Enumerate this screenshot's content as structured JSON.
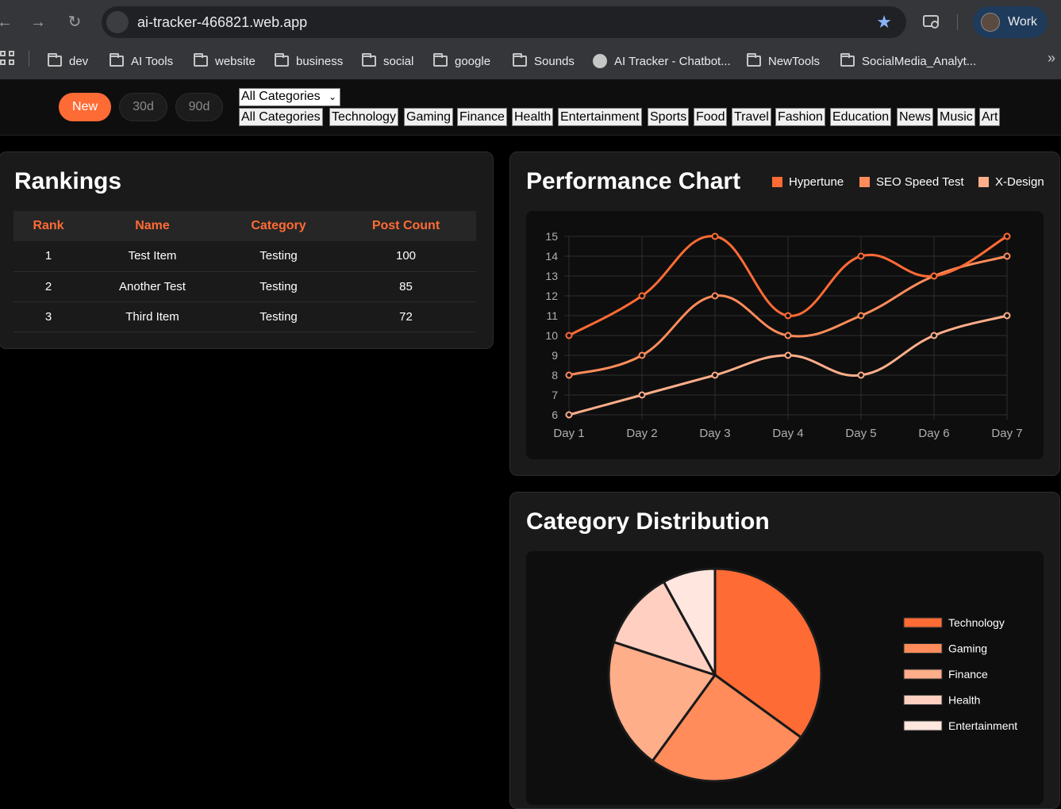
{
  "browser": {
    "url": "ai-tracker-466821.web.app",
    "profile_label": "Work",
    "bookmarks": [
      {
        "label": "dev",
        "icon": "folder-icon"
      },
      {
        "label": "AI Tools",
        "icon": "folder-icon"
      },
      {
        "label": "website",
        "icon": "folder-icon"
      },
      {
        "label": "business",
        "icon": "folder-icon"
      },
      {
        "label": "social",
        "icon": "folder-icon"
      },
      {
        "label": "google",
        "icon": "folder-icon"
      },
      {
        "label": "Sounds",
        "icon": "folder-icon"
      },
      {
        "label": "AI Tracker - Chatbot...",
        "icon": "globe-icon"
      },
      {
        "label": "NewTools",
        "icon": "folder-icon"
      },
      {
        "label": "SocialMedia_Analyt...",
        "icon": "folder-icon"
      }
    ]
  },
  "toolbar": {
    "periods": [
      "New",
      "30d",
      "90d"
    ],
    "active_period": "New",
    "category_select_value": "All Categories",
    "category_buttons": [
      "All Categories",
      "Technology",
      "Gaming",
      "Finance",
      "Health",
      "Entertainment",
      "Sports",
      "Food",
      "Travel",
      "Fashion",
      "Education",
      "News",
      "Music",
      "Art"
    ]
  },
  "rankings": {
    "title": "Rankings",
    "columns": [
      "Rank",
      "Name",
      "Category",
      "Post Count"
    ],
    "rows": [
      [
        "1",
        "Test Item",
        "Testing",
        "100"
      ],
      [
        "2",
        "Another Test",
        "Testing",
        "85"
      ],
      [
        "3",
        "Third Item",
        "Testing",
        "72"
      ]
    ]
  },
  "performance": {
    "title": "Performance Chart"
  },
  "distribution": {
    "title": "Category Distribution"
  },
  "colors": {
    "accent": "#ff6b35",
    "series": [
      "#ff6b35",
      "#ff8c5a",
      "#ffae8a",
      "#ffd0c2",
      "#ffe6de"
    ]
  },
  "chart_data": [
    {
      "type": "line",
      "title": "Performance Chart",
      "x": [
        "Day 1",
        "Day 2",
        "Day 3",
        "Day 4",
        "Day 5",
        "Day 6",
        "Day 7"
      ],
      "series": [
        {
          "name": "Hypertune",
          "values": [
            10,
            12,
            15,
            11,
            14,
            13,
            15
          ]
        },
        {
          "name": "SEO Speed Test",
          "values": [
            8,
            9,
            12,
            10,
            11,
            13,
            14
          ]
        },
        {
          "name": "X-Design",
          "values": [
            6,
            7,
            8,
            9,
            8,
            10,
            11
          ]
        }
      ],
      "ylim": [
        6,
        15
      ],
      "yticks": [
        6,
        7,
        8,
        9,
        10,
        11,
        12,
        13,
        14,
        15
      ],
      "grid": true,
      "legend": "top-right"
    },
    {
      "type": "pie",
      "title": "Category Distribution",
      "categories": [
        "Technology",
        "Gaming",
        "Finance",
        "Health",
        "Entertainment"
      ],
      "values": [
        35,
        25,
        20,
        12,
        8
      ],
      "legend": "right"
    }
  ]
}
